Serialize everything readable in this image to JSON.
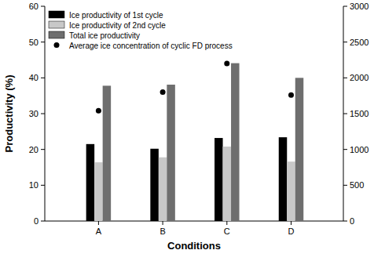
{
  "chart_data": {
    "type": "bar",
    "x_label": "Conditions",
    "y_label": "Productivity (%)",
    "categories": [
      "A",
      "B",
      "C",
      "D"
    ],
    "series": [
      {
        "name": "Ice productivity of 1st cycle",
        "color": "#000000",
        "values": [
          21.5,
          20.2,
          23.2,
          23.4
        ]
      },
      {
        "name": "Ice productivity of 2nd cycle",
        "color": "#c8c8c8",
        "values": [
          16.4,
          17.8,
          20.8,
          16.6
        ]
      },
      {
        "name": "Total ice productivity",
        "color": "#6e6e6e",
        "values": [
          37.8,
          38.1,
          44.1,
          40.0
        ]
      },
      {
        "name": "Average ice concentration of cyclic FD process",
        "type": "scatter",
        "marker": "circle",
        "color": "#000000",
        "axis": "y2",
        "values": [
          1540,
          1800,
          2200,
          1760
        ]
      }
    ],
    "ylim": [
      0,
      60
    ],
    "yticks": [
      0,
      10,
      20,
      30,
      40,
      50,
      60
    ],
    "y2lim": [
      0,
      3000
    ],
    "y2ticks": [
      0,
      500,
      1000,
      1500,
      2000,
      2500,
      3000
    ],
    "legend": "upper left",
    "grid": false
  }
}
